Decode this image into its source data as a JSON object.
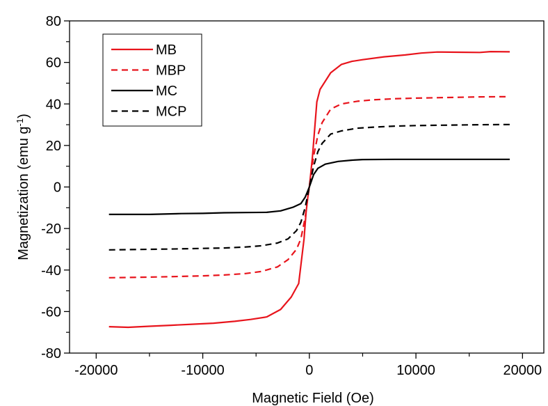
{
  "chart_data": {
    "type": "line",
    "title": "",
    "xlabel": "Magnetic Field (Oe)",
    "ylabel_main": "Magnetization (emu g",
    "ylabel_sup": "-1",
    "ylabel_close": ")",
    "xlim": [
      -22500,
      22000
    ],
    "ylim": [
      -80,
      80
    ],
    "xticks": [
      -20000,
      -10000,
      0,
      10000,
      20000
    ],
    "yticks": [
      -80,
      -60,
      -40,
      -20,
      0,
      20,
      40,
      60,
      80
    ],
    "grid": false,
    "legend_position": "top-left",
    "series": [
      {
        "name": "MB",
        "color": "#e8141c",
        "dash": "solid",
        "x": [
          -18800,
          -17000,
          -15000,
          -13000,
          -11000,
          -9000,
          -7000,
          -5500,
          -4000,
          -2700,
          -1700,
          -1000,
          -500,
          -300,
          -100,
          0,
          100,
          300,
          500,
          700,
          1000,
          2000,
          3000,
          4000,
          5000,
          7000,
          9000,
          10500,
          12000,
          14000,
          16000,
          17000,
          18800
        ],
        "y": [
          -67.3,
          -67.6,
          -67.1,
          -66.6,
          -66.1,
          -65.6,
          -64.7,
          -63.8,
          -62.6,
          -59.0,
          -53.0,
          -46.5,
          -25.0,
          -12.0,
          -3.0,
          0,
          5.0,
          15.0,
          28.0,
          41.0,
          47.0,
          55.0,
          59.0,
          60.5,
          61.3,
          62.7,
          63.6,
          64.5,
          65.0,
          64.9,
          64.8,
          65.2,
          65.1
        ]
      },
      {
        "name": "MBP",
        "color": "#e8141c",
        "dash": "dashed",
        "x": [
          -18800,
          -16000,
          -13000,
          -10000,
          -8000,
          -6000,
          -4500,
          -3000,
          -2000,
          -1200,
          -800,
          -400,
          -200,
          0,
          200,
          400,
          800,
          1200,
          2000,
          3000,
          4500,
          6000,
          8000,
          10000,
          13000,
          16000,
          18800
        ],
        "y": [
          -43.7,
          -43.5,
          -43.2,
          -42.8,
          -42.4,
          -41.7,
          -40.7,
          -38.5,
          -35.0,
          -30.0,
          -25.0,
          -15.0,
          -7.0,
          0,
          7.0,
          15.0,
          25.0,
          31.0,
          37.5,
          40.0,
          41.3,
          42.0,
          42.5,
          42.8,
          43.1,
          43.4,
          43.5
        ]
      },
      {
        "name": "MC",
        "color": "#000000",
        "dash": "solid",
        "x": [
          -18800,
          -15000,
          -12000,
          -10000,
          -8000,
          -6000,
          -4000,
          -2700,
          -1500,
          -800,
          -400,
          -200,
          0,
          200,
          400,
          800,
          1500,
          2700,
          4000,
          5000,
          8000,
          10000,
          13000,
          16000,
          18800
        ],
        "y": [
          -13.2,
          -13.2,
          -12.8,
          -12.7,
          -12.4,
          -12.3,
          -12.2,
          -11.5,
          -9.7,
          -8.0,
          -5.0,
          -2.5,
          0,
          3.0,
          6.0,
          9.0,
          11.0,
          12.3,
          12.9,
          13.2,
          13.3,
          13.3,
          13.3,
          13.3,
          13.3
        ]
      },
      {
        "name": "MCP",
        "color": "#000000",
        "dash": "dashed",
        "x": [
          -18800,
          -16000,
          -13000,
          -10000,
          -8000,
          -6000,
          -4500,
          -3000,
          -2000,
          -1200,
          -800,
          -400,
          -200,
          0,
          200,
          400,
          800,
          1200,
          2000,
          3000,
          4500,
          6000,
          8000,
          10000,
          13000,
          16000,
          18800
        ],
        "y": [
          -30.3,
          -30.1,
          -29.9,
          -29.6,
          -29.4,
          -28.9,
          -28.3,
          -27.0,
          -25.0,
          -21.0,
          -17.0,
          -10.0,
          -5.0,
          0,
          5.0,
          10.0,
          17.0,
          21.0,
          25.5,
          27.0,
          28.3,
          28.8,
          29.3,
          29.6,
          29.8,
          30.0,
          30.1
        ]
      }
    ]
  }
}
